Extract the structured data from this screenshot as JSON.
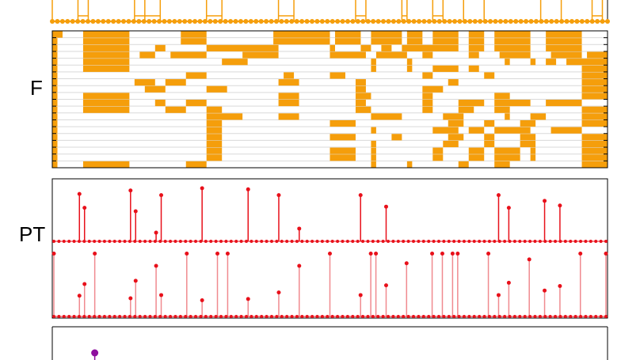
{
  "colors": {
    "orange": "#f59e0b",
    "orange_dark": "#e8940a",
    "red": "#e8101a",
    "red_light": "#f08a8f",
    "purple": "#8e0f9e",
    "grid": "#d9d9d9",
    "frame": "#000000"
  },
  "chart_data": [
    {
      "type": "line",
      "name": "spike-train-panel",
      "label": "",
      "x_range": [
        0,
        108
      ],
      "ylim": [
        0,
        1
      ],
      "spike_positions": [
        0,
        5,
        7,
        16,
        18,
        21,
        30,
        33,
        44,
        47,
        59,
        61,
        68,
        69,
        74,
        76,
        80,
        84,
        95,
        99,
        105,
        107
      ],
      "baseline_dots": 110
    },
    {
      "type": "heatmap",
      "label": "F",
      "rows": 20,
      "columns": 108,
      "cell_color": "orange",
      "segments": [
        [
          0,
          2,
          6,
          15,
          25,
          30,
          43,
          54,
          55,
          60,
          62,
          68,
          69,
          72,
          74,
          79,
          81,
          84,
          86,
          93,
          96,
          103,
          108
        ],
        [
          0,
          1,
          6,
          15,
          25,
          30,
          43,
          54,
          55,
          60,
          62,
          68,
          69,
          72,
          74,
          79,
          81,
          84,
          86,
          93,
          96,
          103,
          108
        ],
        [
          0,
          1,
          6,
          15,
          20,
          22,
          30,
          44,
          54,
          55,
          60,
          62,
          64,
          66,
          68,
          79,
          81,
          84,
          86,
          93,
          96,
          103,
          108
        ],
        [
          0,
          1,
          6,
          15,
          17,
          20,
          23,
          30,
          37,
          44,
          54,
          61,
          63,
          69,
          72,
          74,
          81,
          83,
          87,
          93,
          97,
          103,
          104,
          108
        ],
        [
          0,
          1,
          6,
          15,
          33,
          38,
          62,
          63,
          69,
          70,
          88,
          89,
          93,
          94,
          96,
          98,
          100,
          108
        ],
        [
          0,
          1,
          6,
          15,
          62,
          63,
          69,
          70,
          74,
          79,
          81,
          83,
          103,
          108
        ],
        [
          0,
          1,
          26,
          30,
          45,
          47,
          54,
          57,
          72,
          74,
          84,
          86,
          103,
          108
        ],
        [
          0,
          1,
          16,
          20,
          22,
          26,
          44,
          48,
          59,
          61,
          77,
          79,
          103,
          108
        ],
        [
          0,
          1,
          18,
          22,
          30,
          34,
          59,
          61,
          72,
          76,
          103,
          108
        ],
        [
          0,
          1,
          6,
          15,
          44,
          48,
          59,
          62,
          72,
          74,
          86,
          89,
          103,
          108
        ],
        [
          0,
          1,
          6,
          15,
          20,
          22,
          26,
          30,
          44,
          48,
          59,
          61,
          72,
          74,
          79,
          84,
          86,
          93,
          96,
          103,
          108
        ],
        [
          0,
          1,
          6,
          15,
          22,
          26,
          30,
          33,
          59,
          62,
          72,
          74,
          79,
          82,
          86,
          89,
          103,
          108
        ],
        [
          0,
          1,
          30,
          37,
          44,
          48,
          62,
          68,
          76,
          80,
          88,
          89,
          93,
          96,
          103,
          108
        ],
        [
          0,
          1,
          30,
          33,
          54,
          59,
          77,
          80,
          84,
          86,
          91,
          94,
          103,
          108
        ],
        [
          0,
          1,
          30,
          33,
          62,
          63,
          74,
          79,
          81,
          84,
          86,
          93,
          97,
          103,
          108
        ],
        [
          0,
          1,
          30,
          33,
          54,
          59,
          66,
          68,
          77,
          80,
          84,
          86,
          91,
          94,
          103,
          108
        ],
        [
          0,
          1,
          30,
          33,
          62,
          63,
          76,
          79,
          84,
          86,
          91,
          94,
          103,
          108
        ],
        [
          0,
          1,
          30,
          33,
          54,
          59,
          62,
          63,
          74,
          76,
          81,
          84,
          86,
          91,
          93,
          94,
          103,
          108
        ],
        [
          0,
          1,
          30,
          33,
          54,
          59,
          62,
          63,
          74,
          76,
          81,
          84,
          86,
          91,
          93,
          94,
          103,
          108
        ],
        [
          0,
          1,
          6,
          15,
          26,
          30,
          62,
          63,
          69,
          70,
          79,
          81,
          86,
          89,
          103,
          108
        ]
      ]
    },
    {
      "type": "scatter",
      "label": "PT",
      "x_range": [
        0,
        108
      ],
      "ylim": [
        0,
        1
      ],
      "upper_stems": [
        {
          "x": 5,
          "y": 0.82
        },
        {
          "x": 6,
          "y": 0.58
        },
        {
          "x": 15,
          "y": 0.88
        },
        {
          "x": 16,
          "y": 0.52
        },
        {
          "x": 20,
          "y": 0.15
        },
        {
          "x": 21,
          "y": 0.8
        },
        {
          "x": 29,
          "y": 0.92
        },
        {
          "x": 38,
          "y": 0.9
        },
        {
          "x": 44,
          "y": 0.8
        },
        {
          "x": 48,
          "y": 0.22
        },
        {
          "x": 60,
          "y": 0.8
        },
        {
          "x": 65,
          "y": 0.6
        },
        {
          "x": 87,
          "y": 0.8
        },
        {
          "x": 89,
          "y": 0.58
        },
        {
          "x": 96,
          "y": 0.7
        },
        {
          "x": 99,
          "y": 0.62
        }
      ],
      "lower_stems": [
        {
          "x": 0,
          "y": 0.97
        },
        {
          "x": 5,
          "y": 0.32
        },
        {
          "x": 6,
          "y": 0.5
        },
        {
          "x": 8,
          "y": 0.97
        },
        {
          "x": 15,
          "y": 0.28
        },
        {
          "x": 16,
          "y": 0.55
        },
        {
          "x": 20,
          "y": 0.78
        },
        {
          "x": 21,
          "y": 0.33
        },
        {
          "x": 26,
          "y": 0.97
        },
        {
          "x": 29,
          "y": 0.25
        },
        {
          "x": 32,
          "y": 0.97
        },
        {
          "x": 34,
          "y": 0.97
        },
        {
          "x": 38,
          "y": 0.27
        },
        {
          "x": 44,
          "y": 0.37
        },
        {
          "x": 48,
          "y": 0.78
        },
        {
          "x": 54,
          "y": 0.97
        },
        {
          "x": 60,
          "y": 0.33
        },
        {
          "x": 62,
          "y": 0.97
        },
        {
          "x": 63,
          "y": 0.97
        },
        {
          "x": 65,
          "y": 0.48
        },
        {
          "x": 69,
          "y": 0.82
        },
        {
          "x": 74,
          "y": 0.97
        },
        {
          "x": 76,
          "y": 0.97
        },
        {
          "x": 78,
          "y": 0.97
        },
        {
          "x": 79,
          "y": 0.97
        },
        {
          "x": 85,
          "y": 0.97
        },
        {
          "x": 87,
          "y": 0.33
        },
        {
          "x": 89,
          "y": 0.52
        },
        {
          "x": 93,
          "y": 0.88
        },
        {
          "x": 96,
          "y": 0.4
        },
        {
          "x": 99,
          "y": 0.47
        },
        {
          "x": 103,
          "y": 0.97
        },
        {
          "x": 108,
          "y": 0.97
        }
      ],
      "baseline_dots": 110
    },
    {
      "type": "scatter",
      "name": "bottom-panel",
      "label": "",
      "x_range": [
        0,
        108
      ],
      "points": [
        {
          "x": 8,
          "y": 0.9
        }
      ]
    }
  ]
}
